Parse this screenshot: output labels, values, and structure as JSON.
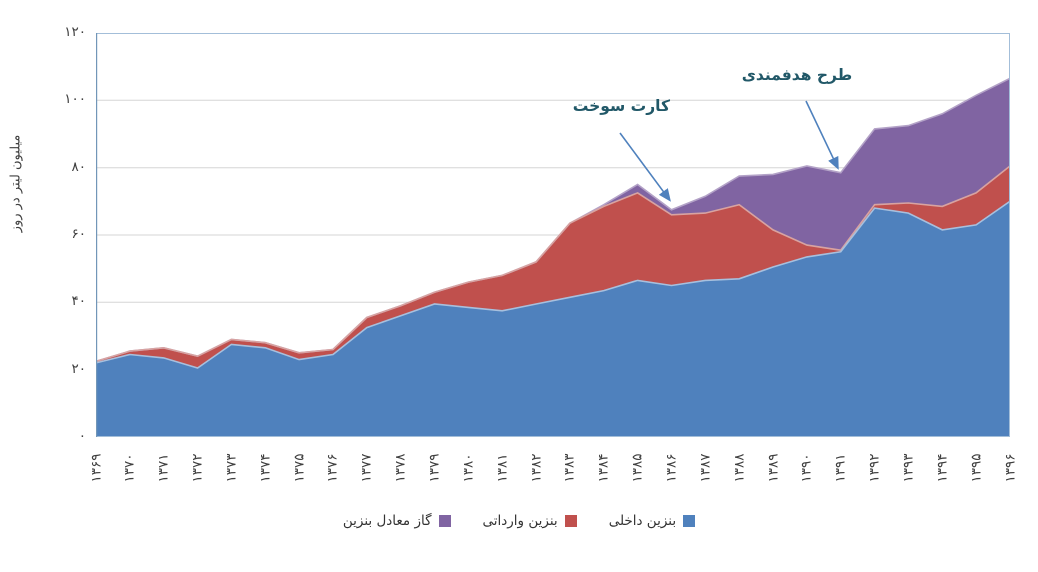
{
  "chart_data": {
    "type": "area",
    "stacked": true,
    "ylabel": "میلیون لیتر در روز",
    "ylim": [
      0,
      120
    ],
    "ytick_interval": 20,
    "ytick_labels": [
      "۰",
      "۲۰",
      "۴۰",
      "۶۰",
      "۸۰",
      "۱۰۰",
      "۱۲۰"
    ],
    "categories": [
      "۱۳۶۹",
      "۱۳۷۰",
      "۱۳۷۱",
      "۱۳۷۲",
      "۱۳۷۳",
      "۱۳۷۴",
      "۱۳۷۵",
      "۱۳۷۶",
      "۱۳۷۷",
      "۱۳۷۸",
      "۱۳۷۹",
      "۱۳۸۰",
      "۱۳۸۱",
      "۱۳۸۲",
      "۱۳۸۳",
      "۱۳۸۴",
      "۱۳۸۵",
      "۱۳۸۶",
      "۱۳۸۷",
      "۱۳۸۸",
      "۱۳۸۹",
      "۱۳۹۰",
      "۱۳۹۱",
      "۱۳۹۲",
      "۱۳۹۳",
      "۱۳۹۴",
      "۱۳۹۵",
      "۱۳۹۶"
    ],
    "series": [
      {
        "name": "بنزین داخلی",
        "color": "#4f81bd",
        "edge_color": "#a7c0de",
        "values": [
          22,
          24.5,
          23.5,
          20.5,
          27.5,
          26.5,
          23,
          24.5,
          32.5,
          36,
          39.5,
          38.5,
          37.5,
          39.5,
          41.5,
          43.5,
          46.5,
          45,
          46.5,
          47,
          50.5,
          53.5,
          55,
          68,
          66.5,
          61.5,
          63,
          70
        ]
      },
      {
        "name": "بنزین وارداتی",
        "color": "#c0504d",
        "edge_color": "#d8a3a1",
        "values": [
          0.5,
          1,
          3,
          3.5,
          1.5,
          1.5,
          2,
          1.5,
          3,
          3,
          3.5,
          7.5,
          10.5,
          12.5,
          22,
          25,
          26,
          21,
          20,
          22,
          11,
          3.5,
          0.5,
          1,
          3,
          7,
          9.5,
          10.5
        ]
      },
      {
        "name": "گاز معادل بنزین",
        "color": "#8064a2",
        "edge_color": "#b3a2c7",
        "values": [
          0,
          0,
          0,
          0,
          0,
          0,
          0,
          0,
          0,
          0,
          0,
          0,
          0,
          0,
          0,
          0.5,
          2.5,
          1.5,
          5,
          8.5,
          16.5,
          23.5,
          23,
          22.5,
          23,
          27.5,
          29,
          26
        ]
      }
    ],
    "grid": "horizontal",
    "legend_position": "bottom",
    "annotations": [
      {
        "text": "کارت سوخت",
        "target_category": "۱۳۸۶",
        "target_index": 17
      },
      {
        "text": "طرح هدفمندی",
        "target_category": "۱۳۹۱",
        "target_index": 22
      }
    ],
    "annotation_color": "#215868",
    "arrow_color": "#4f81bd",
    "gridline_color": "#d6d6d6",
    "plot_border_color": "#a3bed9",
    "axis_line_color": "#7296b8"
  }
}
